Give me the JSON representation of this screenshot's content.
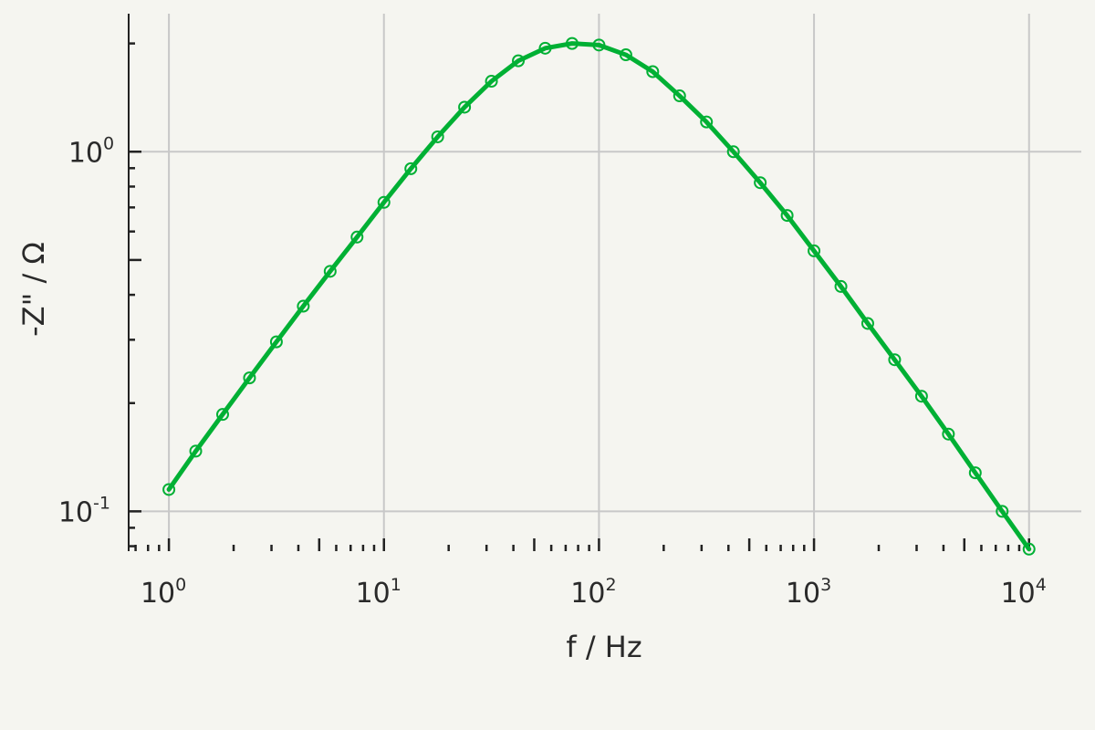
{
  "chart_data": {
    "type": "line",
    "xscale": "log",
    "yscale": "log",
    "xlabel": "f / Hz",
    "ylabel": "-Z\" / Ω",
    "xlim": [
      0.65,
      17500
    ],
    "ylim": [
      0.0775,
      2.42
    ],
    "grid": true,
    "x_ticks": [
      {
        "base": "10",
        "exp": "0"
      },
      {
        "base": "10",
        "exp": "1"
      },
      {
        "base": "10",
        "exp": "2"
      },
      {
        "base": "10",
        "exp": "3"
      },
      {
        "base": "10",
        "exp": "4"
      }
    ],
    "y_ticks": [
      {
        "base": "10",
        "exp": "-1"
      },
      {
        "base": "10",
        "exp": "0"
      }
    ],
    "series": [
      {
        "color": "#00b034",
        "x": [
          1,
          1.333,
          1.778,
          2.371,
          3.162,
          4.217,
          5.623,
          7.499,
          10,
          13.34,
          17.78,
          23.71,
          31.62,
          42.17,
          56.23,
          74.99,
          100,
          133.4,
          177.8,
          237.1,
          316.2,
          421.7,
          562.3,
          749.9,
          1000,
          1334,
          1778,
          2371,
          3162,
          4217,
          5623,
          7499,
          10000
        ],
        "y": [
          0.115,
          0.147,
          0.186,
          0.235,
          0.296,
          0.372,
          0.465,
          0.579,
          0.723,
          0.897,
          1.1,
          1.33,
          1.57,
          1.79,
          1.94,
          2.0,
          1.98,
          1.86,
          1.67,
          1.43,
          1.21,
          1.0,
          0.82,
          0.665,
          0.53,
          0.422,
          0.333,
          0.264,
          0.209,
          0.164,
          0.128,
          0.1,
          0.0785
        ]
      }
    ]
  }
}
